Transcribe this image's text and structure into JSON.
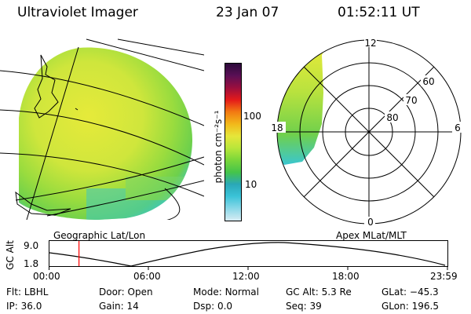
{
  "header": {
    "instrument": "Ultraviolet Imager",
    "date": "23 Jan 07",
    "time": "01:52:11 UT"
  },
  "left_panel": {
    "caption": "Geographic Lat/Lon"
  },
  "right_panel": {
    "caption": "Apex MLat/MLT",
    "mlt_labels": [
      "12",
      "18",
      "6",
      "0"
    ],
    "lat_labels": [
      "60",
      "70",
      "80"
    ]
  },
  "colorbar": {
    "unit_label": "photon cm⁻²s⁻¹",
    "ticks": [
      "100",
      "10"
    ],
    "colors": [
      "#2c0a3a",
      "#5a0f55",
      "#9a0e3e",
      "#e41a1a",
      "#f27a12",
      "#f2b81a",
      "#e6e63a",
      "#b8e63a",
      "#7ad63a",
      "#45c44a",
      "#2aa8b8",
      "#3bc3d8",
      "#8ad8e8",
      "#d8ecf3"
    ]
  },
  "timeline": {
    "axis_label": "GC Alt",
    "y_ticks": [
      "9.0",
      "1.8"
    ],
    "x_ticks": [
      "00:00",
      "06:00",
      "12:00",
      "18:00",
      "23:59"
    ],
    "current_fraction": 0.075,
    "marker_color": "#ff0000"
  },
  "footer": {
    "row1": [
      {
        "label": "Flt:",
        "value": "LBHL"
      },
      {
        "label": "Door:",
        "value": "Open"
      },
      {
        "label": "Mode:",
        "value": "Normal"
      },
      {
        "label": "GC Alt:",
        "value": "5.3 Re"
      },
      {
        "label": "GLat:",
        "value": "−45.3"
      }
    ],
    "row2": [
      {
        "label": "IP:",
        "value": "36.0"
      },
      {
        "label": "Gain:",
        "value": "14"
      },
      {
        "label": "Dsp:",
        "value": "0.0"
      },
      {
        "label": "Seq:",
        "value": "39"
      },
      {
        "label": "GLon:",
        "value": "196.5"
      }
    ]
  }
}
